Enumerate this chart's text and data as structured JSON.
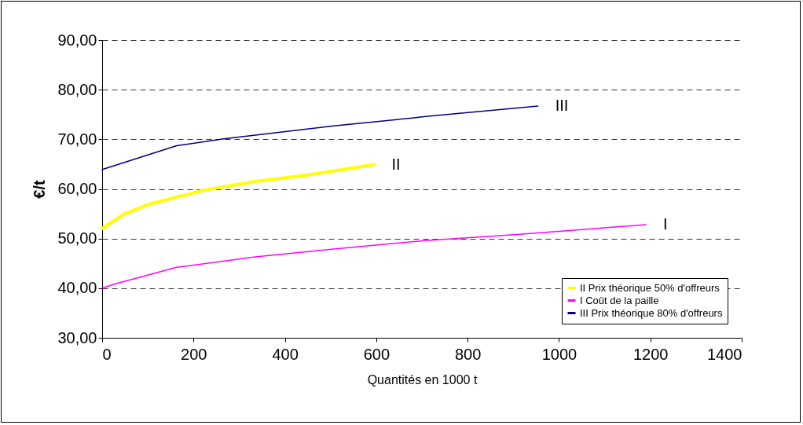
{
  "chart_data": {
    "type": "line",
    "xlabel": "Quantités en 1000 t",
    "ylabel": "€/t",
    "xlim": [
      0,
      1400
    ],
    "xticks": [
      0,
      200,
      400,
      600,
      800,
      1000,
      1200,
      1400
    ],
    "ylim": [
      30,
      90
    ],
    "yticks": [
      {
        "value": 30,
        "label": "30,00"
      },
      {
        "value": 40,
        "label": "40,00"
      },
      {
        "value": 50,
        "label": "50,00"
      },
      {
        "value": 60,
        "label": "60,00"
      },
      {
        "value": 70,
        "label": "70,00"
      },
      {
        "value": 80,
        "label": "80,00"
      },
      {
        "value": 90,
        "label": "90,00"
      }
    ],
    "grid": "y",
    "legend": "bottom right",
    "series": [
      {
        "name": "II Prix théorique 50% d'offreurs",
        "color": "#ffff00",
        "x": [
          0,
          48,
          106,
          221,
          335,
          450,
          596
        ],
        "values": [
          52.0,
          54.9,
          57.0,
          59.7,
          61.5,
          62.8,
          64.9
        ]
      },
      {
        "name": "I Coût de la paille",
        "color": "#ff00ff",
        "x": [
          0,
          34,
          163,
          335,
          507,
          708,
          908,
          1190
        ],
        "values": [
          40.0,
          41.0,
          44.2,
          46.3,
          47.9,
          49.6,
          50.8,
          52.8
        ]
      },
      {
        "name": "III Prix théorique 80% d'offreurs",
        "color": "#000080",
        "x": [
          0,
          3,
          163,
          266,
          507,
          679,
          708,
          954
        ],
        "values": [
          63.8,
          64.0,
          68.7,
          70.1,
          72.7,
          74.3,
          74.6,
          76.7
        ]
      }
    ],
    "annotations": [
      {
        "text": "III",
        "x": 954,
        "y": 76.7
      },
      {
        "text": "II",
        "x": 596,
        "y": 64.9
      },
      {
        "text": "I",
        "x": 1190,
        "y": 52.8
      }
    ]
  }
}
